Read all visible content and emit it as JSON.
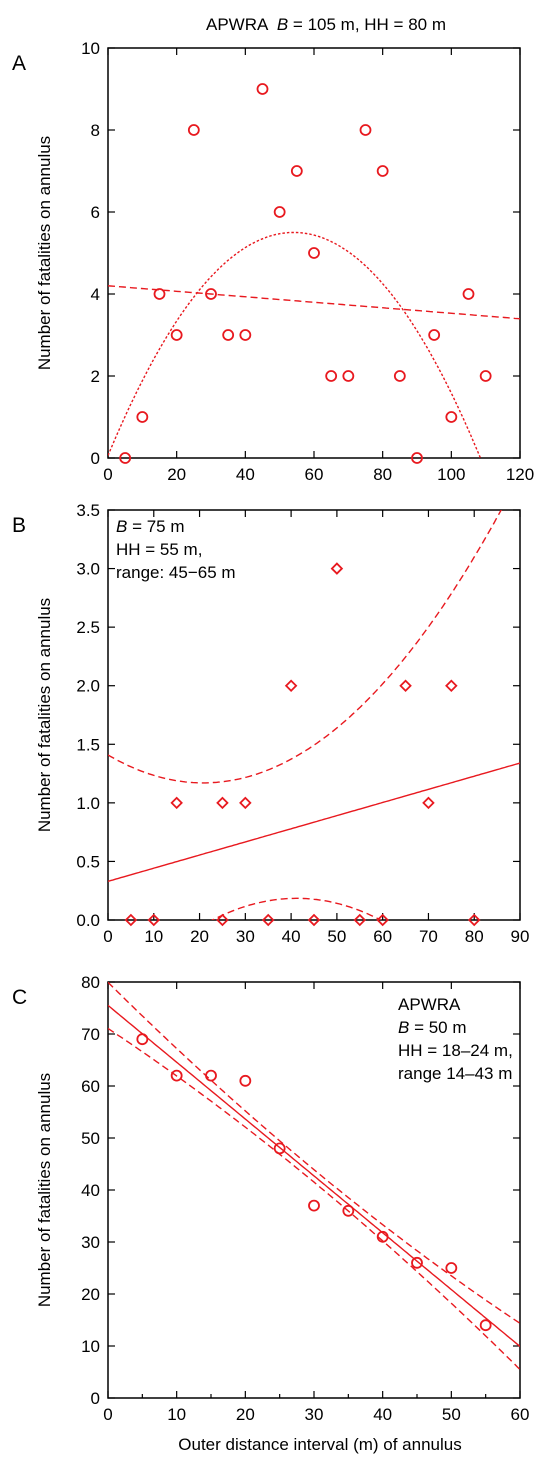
{
  "chart_data": [
    {
      "type": "scatter",
      "panel": "A",
      "title_parts": [
        "APWRA  ",
        "B",
        " = 105 m, HH = 80 m"
      ],
      "ylabel": "Number of fatalities on annulus",
      "xlabel": "",
      "xlim": [
        0,
        120
      ],
      "ylim": [
        0,
        10
      ],
      "xticks": [
        0,
        20,
        40,
        60,
        80,
        100,
        120
      ],
      "yticks": [
        0,
        2,
        4,
        6,
        8,
        10
      ],
      "ytick_labels": [
        "0",
        "2",
        "4",
        "6",
        "8",
        "10"
      ],
      "marker": "circle",
      "color": "#e8191f",
      "points": [
        {
          "x": 5,
          "y": 0
        },
        {
          "x": 10,
          "y": 1
        },
        {
          "x": 15,
          "y": 4
        },
        {
          "x": 20,
          "y": 3
        },
        {
          "x": 25,
          "y": 8
        },
        {
          "x": 30,
          "y": 4
        },
        {
          "x": 35,
          "y": 3
        },
        {
          "x": 40,
          "y": 3
        },
        {
          "x": 45,
          "y": 9
        },
        {
          "x": 50,
          "y": 6
        },
        {
          "x": 55,
          "y": 7
        },
        {
          "x": 60,
          "y": 5
        },
        {
          "x": 65,
          "y": 2
        },
        {
          "x": 70,
          "y": 2
        },
        {
          "x": 75,
          "y": 8
        },
        {
          "x": 80,
          "y": 7
        },
        {
          "x": 85,
          "y": 2
        },
        {
          "x": 90,
          "y": 0
        },
        {
          "x": 95,
          "y": 3
        },
        {
          "x": 100,
          "y": 1
        },
        {
          "x": 105,
          "y": 4
        },
        {
          "x": 110,
          "y": 2
        }
      ],
      "fits": [
        {
          "kind": "linear",
          "dash": "dashed",
          "intercept": 4.2,
          "slope": -0.0067
        },
        {
          "kind": "quadratic",
          "dash": "dotted",
          "a": -0.00186,
          "b": 0.2012,
          "c": 0.06
        }
      ],
      "annotation_lines": []
    },
    {
      "type": "scatter",
      "panel": "B",
      "title_parts": [],
      "ylabel": "Number of fatalities on annulus",
      "xlabel": "",
      "xlim": [
        0,
        90
      ],
      "ylim": [
        0,
        3.5
      ],
      "xticks": [
        0,
        10,
        20,
        30,
        40,
        50,
        60,
        70,
        80,
        90
      ],
      "yticks": [
        0,
        0.5,
        1,
        1.5,
        2,
        2.5,
        3,
        3.5
      ],
      "ytick_labels": [
        "0.0",
        "0.5",
        "1.0",
        "1.5",
        "2.0",
        "2.5",
        "3.0",
        "3.5"
      ],
      "marker": "diamond",
      "color": "#e8191f",
      "points": [
        {
          "x": 5,
          "y": 0
        },
        {
          "x": 10,
          "y": 0
        },
        {
          "x": 15,
          "y": 1
        },
        {
          "x": 25,
          "y": 1
        },
        {
          "x": 25,
          "y": 0
        },
        {
          "x": 30,
          "y": 1
        },
        {
          "x": 35,
          "y": 0
        },
        {
          "x": 40,
          "y": 2
        },
        {
          "x": 45,
          "y": 0
        },
        {
          "x": 50,
          "y": 3
        },
        {
          "x": 55,
          "y": 0
        },
        {
          "x": 60,
          "y": 0
        },
        {
          "x": 65,
          "y": 2
        },
        {
          "x": 70,
          "y": 1
        },
        {
          "x": 75,
          "y": 2
        },
        {
          "x": 80,
          "y": 0
        }
      ],
      "fits": [
        {
          "kind": "linear",
          "dash": "solid",
          "intercept": 0.33,
          "slope": 0.01122
        },
        {
          "kind": "band-upper",
          "dash": "dashed",
          "intercept": 0.33,
          "slope": 0.01122,
          "center": 31,
          "se0": 1.1,
          "curv": 0.00055
        },
        {
          "kind": "band-lower",
          "dash": "dashed",
          "intercept": 0.33,
          "slope": 0.01122,
          "center": 31,
          "se0": 1.1,
          "curv": 0.00055
        }
      ],
      "annotation_lines": [
        [
          {
            "t": "B",
            "i": true
          },
          {
            "t": " = 75 m"
          }
        ],
        [
          {
            "t": "HH = 55 m,"
          }
        ],
        [
          {
            "t": "range: 45−65 m"
          }
        ]
      ]
    },
    {
      "type": "scatter",
      "panel": "C",
      "title_parts": [],
      "ylabel": "Number of fatalities on annulus",
      "xlabel": "Outer distance interval (m) of annulus",
      "xlim": [
        0,
        60
      ],
      "ylim": [
        0,
        80
      ],
      "xticks": [
        0,
        10,
        20,
        30,
        40,
        50,
        60
      ],
      "yticks": [
        0,
        10,
        20,
        30,
        40,
        50,
        60,
        70,
        80
      ],
      "ytick_labels": [
        "0",
        "10",
        "20",
        "30",
        "40",
        "50",
        "60",
        "70",
        "80"
      ],
      "marker": "circle",
      "color": "#e8191f",
      "points": [
        {
          "x": 5,
          "y": 69
        },
        {
          "x": 10,
          "y": 62
        },
        {
          "x": 15,
          "y": 62
        },
        {
          "x": 20,
          "y": 61
        },
        {
          "x": 25,
          "y": 48
        },
        {
          "x": 30,
          "y": 37
        },
        {
          "x": 35,
          "y": 36
        },
        {
          "x": 40,
          "y": 31
        },
        {
          "x": 45,
          "y": 26
        },
        {
          "x": 50,
          "y": 25
        },
        {
          "x": 55,
          "y": 14
        }
      ],
      "fits": [
        {
          "kind": "linear",
          "dash": "solid",
          "intercept": 75.5,
          "slope": -1.093
        },
        {
          "kind": "band-upper",
          "dash": "dashed",
          "intercept": 75.5,
          "slope": -1.093,
          "center": 30,
          "se0": 2.4,
          "curv": 0.0036
        },
        {
          "kind": "band-lower",
          "dash": "dashed",
          "intercept": 75.5,
          "slope": -1.093,
          "center": 30,
          "se0": 2.4,
          "curv": 0.0036
        }
      ],
      "annotation_lines": [
        [
          {
            "t": "APWRA"
          }
        ],
        [
          {
            "t": "B",
            "i": true
          },
          {
            "t": " = 50 m"
          }
        ],
        [
          {
            "t": "HH = 18–24 m,"
          }
        ],
        [
          {
            "t": "range 14–43 m"
          }
        ]
      ]
    }
  ]
}
